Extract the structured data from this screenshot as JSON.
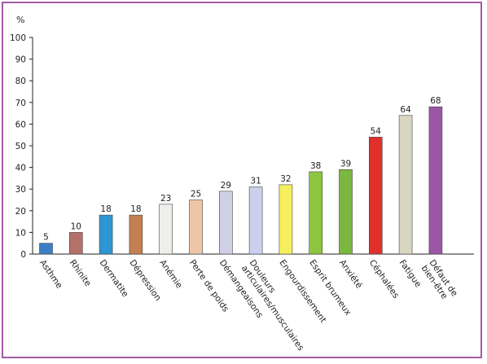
{
  "chart_data": {
    "type": "bar",
    "title": "",
    "ylabel": "%",
    "xlabel": "",
    "ylim": [
      0,
      100
    ],
    "yticks": [
      0,
      10,
      20,
      30,
      40,
      50,
      60,
      70,
      80,
      90,
      100
    ],
    "grid": false,
    "categories": [
      [
        "Asthme"
      ],
      [
        "Rhinite"
      ],
      [
        "Dermatite"
      ],
      [
        "Dépression"
      ],
      [
        "Anémie"
      ],
      [
        "Perte de poids"
      ],
      [
        "Démangeaisons"
      ],
      [
        "Douleurs",
        "articulaires/musculaires"
      ],
      [
        "Engourdissement"
      ],
      [
        "Esprit brumeux"
      ],
      [
        "Anxiété"
      ],
      [
        "Céphalées"
      ],
      [
        "Fatigue"
      ],
      [
        "Défaut de",
        "bien-être"
      ]
    ],
    "values": [
      5,
      10,
      18,
      18,
      23,
      25,
      29,
      31,
      32,
      38,
      39,
      54,
      64,
      68
    ],
    "colors": [
      "#3d7fc4",
      "#b57069",
      "#2f95d4",
      "#c27f4f",
      "#eeeeea",
      "#edc6a8",
      "#cfcfe6",
      "#cdd0ec",
      "#f5ef5e",
      "#8cc63e",
      "#7cb73f",
      "#e0302b",
      "#d8d6c0",
      "#9b57a5"
    ],
    "border_color": "#a25aa6"
  }
}
